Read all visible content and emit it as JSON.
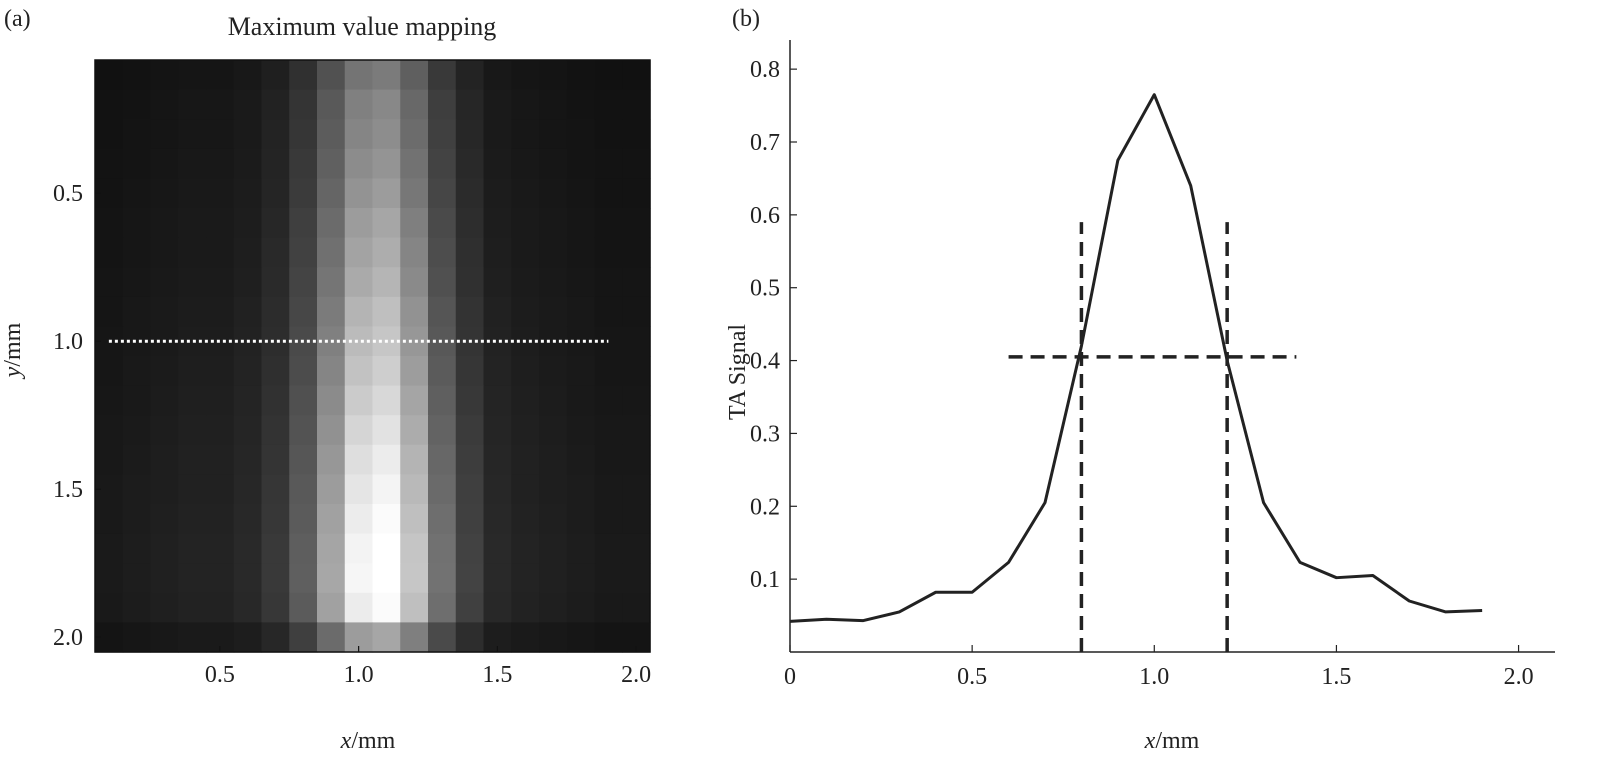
{
  "chart_data": [
    {
      "type": "heatmap",
      "panel_label": "(a)",
      "title": "Maximum value mapping",
      "xlabel_var": "x",
      "xlabel_unit": "/mm",
      "ylabel_var": "y",
      "ylabel_unit": "/mm",
      "xlim": [
        0.05,
        2.05
      ],
      "ylim": [
        2.05,
        0.05
      ],
      "xticks": [
        0.5,
        1.0,
        1.5,
        2.0
      ],
      "xtick_labels": [
        "0.5",
        "1.0",
        "1.5",
        "2.0"
      ],
      "yticks": [
        0.5,
        1.0,
        1.5,
        2.0
      ],
      "ytick_labels": [
        "0.5",
        "1.0",
        "1.5",
        "2.0"
      ],
      "colormap": "grayscale",
      "grid": false,
      "x": [
        0.1,
        0.2,
        0.3,
        0.4,
        0.5,
        0.6,
        0.7,
        0.8,
        0.9,
        1.0,
        1.1,
        1.2,
        1.3,
        1.4,
        1.5,
        1.6,
        1.7,
        1.8,
        1.9,
        2.0
      ],
      "y": [
        0.1,
        0.2,
        0.3,
        0.4,
        0.5,
        0.6,
        0.7,
        0.8,
        0.9,
        1.0,
        1.1,
        1.2,
        1.3,
        1.4,
        1.5,
        1.6,
        1.7,
        1.8,
        1.9,
        2.0
      ],
      "z_profile_x": [
        0.05,
        0.06,
        0.07,
        0.08,
        0.08,
        0.1,
        0.15,
        0.27,
        0.5,
        0.75,
        0.8,
        0.6,
        0.33,
        0.18,
        0.1,
        0.08,
        0.07,
        0.06,
        0.05,
        0.05
      ],
      "z_profile_y": [
        0.45,
        0.5,
        0.52,
        0.55,
        0.58,
        0.62,
        0.65,
        0.68,
        0.72,
        0.75,
        0.78,
        0.82,
        0.86,
        0.9,
        0.93,
        0.96,
        0.99,
        1.0,
        0.96,
        0.62
      ],
      "dashed_line": {
        "y": 1.0,
        "x_range": [
          0.1,
          1.9
        ],
        "color": "#ffffff"
      }
    },
    {
      "type": "line",
      "panel_label": "(b)",
      "xlabel_var": "x",
      "xlabel_unit": "/mm",
      "ylabel": "TA Signal",
      "xlim": [
        0,
        2.1
      ],
      "ylim": [
        0,
        0.84
      ],
      "xticks": [
        0,
        0.5,
        1.0,
        1.5,
        2.0
      ],
      "xtick_labels": [
        "0",
        "0.5",
        "1.0",
        "1.5",
        "2.0"
      ],
      "yticks": [
        0.1,
        0.2,
        0.3,
        0.4,
        0.5,
        0.6,
        0.7,
        0.8
      ],
      "ytick_labels": [
        "0.1",
        "0.2",
        "0.3",
        "0.4",
        "0.5",
        "0.6",
        "0.7",
        "0.8"
      ],
      "grid": false,
      "series": [
        {
          "x": [
            0,
            0.1,
            0.2,
            0.3,
            0.4,
            0.5,
            0.6,
            0.7,
            0.8,
            0.9,
            1.0,
            1.1,
            1.2,
            1.3,
            1.4,
            1.5,
            1.6,
            1.7,
            1.8,
            1.9
          ],
          "values": [
            0.042,
            0.045,
            0.043,
            0.055,
            0.082,
            0.082,
            0.123,
            0.205,
            0.42,
            0.675,
            0.765,
            0.64,
            0.4,
            0.205,
            0.123,
            0.102,
            0.105,
            0.07,
            0.055,
            0.057
          ],
          "color": "#222222"
        }
      ],
      "annotations": [
        {
          "kind": "hline-dashed",
          "y": 0.405,
          "x_range": [
            0.6,
            1.39
          ]
        },
        {
          "kind": "vline-dashed",
          "x": 0.8,
          "y_range": [
            0,
            0.59
          ]
        },
        {
          "kind": "vline-dashed",
          "x": 1.2,
          "y_range": [
            0,
            0.59
          ]
        }
      ]
    }
  ]
}
